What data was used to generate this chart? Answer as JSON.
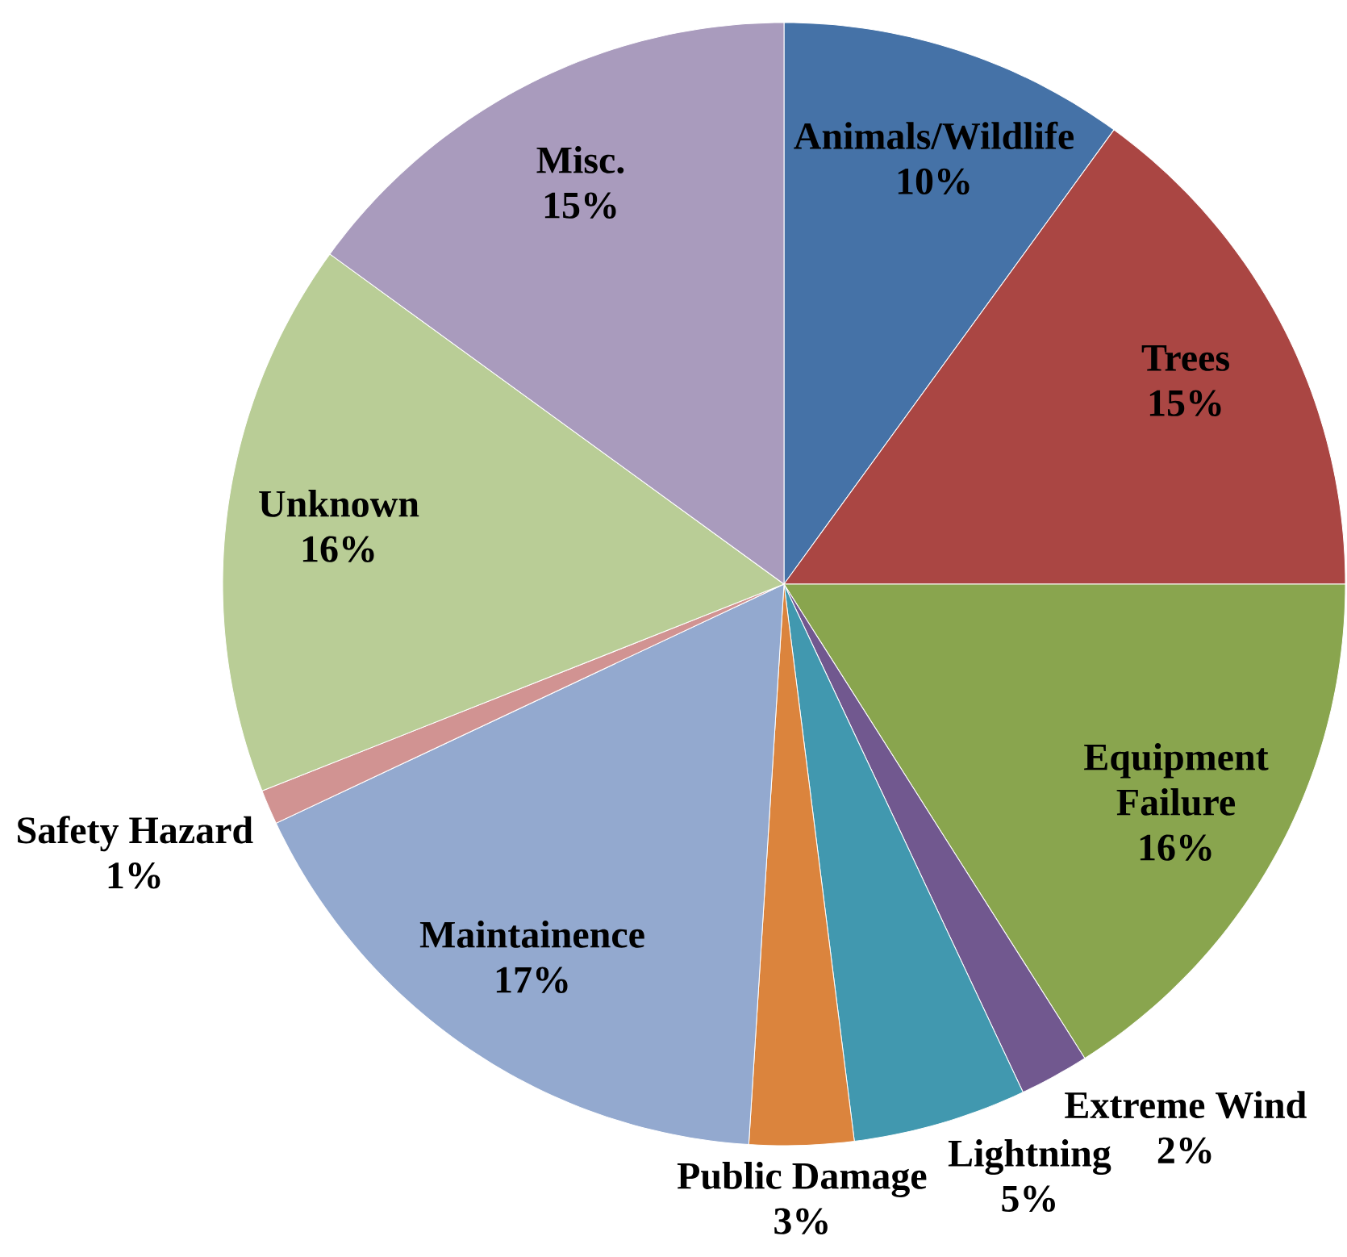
{
  "chart_data": {
    "type": "pie",
    "categories": [
      "Animals/Wildlife",
      "Trees",
      "Equipment Failure",
      "Extreme Wind",
      "Lightning",
      "Public Damage",
      "Maintainence",
      "Safety Hazard",
      "Unknown",
      "Misc."
    ],
    "values": [
      10,
      15,
      16,
      2,
      5,
      3,
      17,
      1,
      16,
      15
    ],
    "value_labels": [
      "10%",
      "15%",
      "16%",
      "2%",
      "5%",
      "3%",
      "17%",
      "1%",
      "16%",
      "15%"
    ],
    "colors": [
      "#4572a7",
      "#aa4643",
      "#89a54e",
      "#71588f",
      "#4198af",
      "#db843d",
      "#93a9cf",
      "#d19392",
      "#b9cd96",
      "#a99bbd"
    ]
  }
}
